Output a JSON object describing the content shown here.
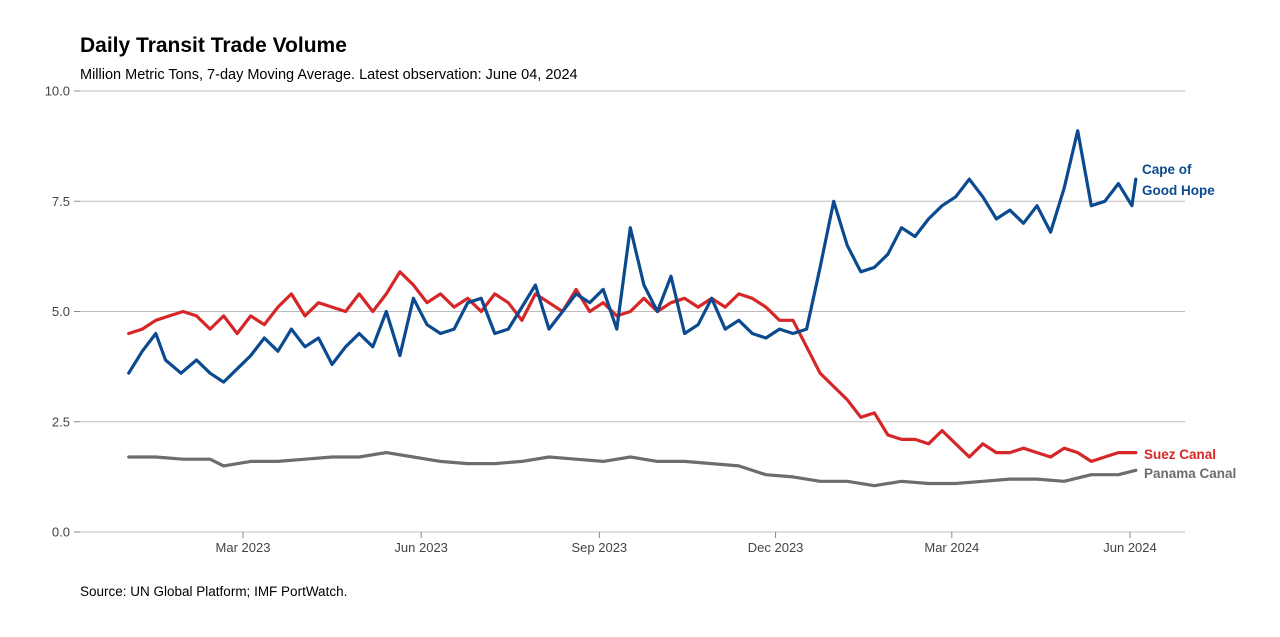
{
  "chart_data": {
    "type": "line",
    "title": "Daily Transit Trade Volume",
    "subtitle": "Million Metric Tons, 7-day Moving Average. Latest observation: June 04, 2024",
    "source": "Source: UN Global Platform; IMF PortWatch.",
    "ylim": [
      0,
      10
    ],
    "yticks": [
      "0.0",
      "2.5",
      "5.0",
      "7.5",
      "10.0"
    ],
    "xticks": [
      {
        "label": "Mar 2023",
        "date": "2023-03-01"
      },
      {
        "label": "Jun 2023",
        "date": "2023-06-01"
      },
      {
        "label": "Sep 2023",
        "date": "2023-09-01"
      },
      {
        "label": "Dec 2023",
        "date": "2023-12-01"
      },
      {
        "label": "Mar 2024",
        "date": "2024-03-01"
      },
      {
        "label": "Jun 2024",
        "date": "2024-06-01"
      }
    ],
    "xlim": [
      "2022-12-10",
      "2024-06-30"
    ],
    "grid": true,
    "legend": "direct-labels-right",
    "series": [
      {
        "name": "Cape of Good Hope",
        "label_lines": [
          "Cape of",
          "Good Hope"
        ],
        "color": "#0b4a8f",
        "points": [
          [
            "2023-01-01",
            3.6
          ],
          [
            "2023-01-08",
            4.1
          ],
          [
            "2023-01-15",
            4.5
          ],
          [
            "2023-01-20",
            3.9
          ],
          [
            "2023-01-28",
            3.6
          ],
          [
            "2023-02-05",
            3.9
          ],
          [
            "2023-02-12",
            3.6
          ],
          [
            "2023-02-19",
            3.4
          ],
          [
            "2023-02-26",
            3.7
          ],
          [
            "2023-03-05",
            4.0
          ],
          [
            "2023-03-12",
            4.4
          ],
          [
            "2023-03-19",
            4.1
          ],
          [
            "2023-03-26",
            4.6
          ],
          [
            "2023-04-02",
            4.2
          ],
          [
            "2023-04-09",
            4.4
          ],
          [
            "2023-04-16",
            3.8
          ],
          [
            "2023-04-23",
            4.2
          ],
          [
            "2023-04-30",
            4.5
          ],
          [
            "2023-05-07",
            4.2
          ],
          [
            "2023-05-14",
            5.0
          ],
          [
            "2023-05-21",
            4.0
          ],
          [
            "2023-05-28",
            5.3
          ],
          [
            "2023-06-04",
            4.7
          ],
          [
            "2023-06-11",
            4.5
          ],
          [
            "2023-06-18",
            4.6
          ],
          [
            "2023-06-25",
            5.2
          ],
          [
            "2023-07-02",
            5.3
          ],
          [
            "2023-07-09",
            4.5
          ],
          [
            "2023-07-16",
            4.6
          ],
          [
            "2023-07-23",
            5.1
          ],
          [
            "2023-07-30",
            5.6
          ],
          [
            "2023-08-06",
            4.6
          ],
          [
            "2023-08-13",
            5.0
          ],
          [
            "2023-08-20",
            5.4
          ],
          [
            "2023-08-27",
            5.2
          ],
          [
            "2023-09-03",
            5.5
          ],
          [
            "2023-09-10",
            4.6
          ],
          [
            "2023-09-17",
            6.9
          ],
          [
            "2023-09-24",
            5.6
          ],
          [
            "2023-10-01",
            5.0
          ],
          [
            "2023-10-08",
            5.8
          ],
          [
            "2023-10-15",
            4.5
          ],
          [
            "2023-10-22",
            4.7
          ],
          [
            "2023-10-29",
            5.3
          ],
          [
            "2023-11-05",
            4.6
          ],
          [
            "2023-11-12",
            4.8
          ],
          [
            "2023-11-19",
            4.5
          ],
          [
            "2023-11-26",
            4.4
          ],
          [
            "2023-12-03",
            4.6
          ],
          [
            "2023-12-10",
            4.5
          ],
          [
            "2023-12-17",
            4.6
          ],
          [
            "2023-12-24",
            6.0
          ],
          [
            "2023-12-31",
            7.5
          ],
          [
            "2024-01-07",
            6.5
          ],
          [
            "2024-01-14",
            5.9
          ],
          [
            "2024-01-21",
            6.0
          ],
          [
            "2024-01-28",
            6.3
          ],
          [
            "2024-02-04",
            6.9
          ],
          [
            "2024-02-11",
            6.7
          ],
          [
            "2024-02-18",
            7.1
          ],
          [
            "2024-02-25",
            7.4
          ],
          [
            "2024-03-03",
            7.6
          ],
          [
            "2024-03-10",
            8.0
          ],
          [
            "2024-03-17",
            7.6
          ],
          [
            "2024-03-24",
            7.1
          ],
          [
            "2024-03-31",
            7.3
          ],
          [
            "2024-04-07",
            7.0
          ],
          [
            "2024-04-14",
            7.4
          ],
          [
            "2024-04-21",
            6.8
          ],
          [
            "2024-04-28",
            7.8
          ],
          [
            "2024-05-05",
            9.1
          ],
          [
            "2024-05-12",
            7.4
          ],
          [
            "2024-05-19",
            7.5
          ],
          [
            "2024-05-26",
            7.9
          ],
          [
            "2024-06-02",
            7.4
          ],
          [
            "2024-06-04",
            8.0
          ]
        ]
      },
      {
        "name": "Suez Canal",
        "label_lines": [
          "Suez Canal"
        ],
        "color": "#d62728",
        "points": [
          [
            "2023-01-01",
            4.5
          ],
          [
            "2023-01-08",
            4.6
          ],
          [
            "2023-01-15",
            4.8
          ],
          [
            "2023-01-22",
            4.9
          ],
          [
            "2023-01-29",
            5.0
          ],
          [
            "2023-02-05",
            4.9
          ],
          [
            "2023-02-12",
            4.6
          ],
          [
            "2023-02-19",
            4.9
          ],
          [
            "2023-02-26",
            4.5
          ],
          [
            "2023-03-05",
            4.9
          ],
          [
            "2023-03-12",
            4.7
          ],
          [
            "2023-03-19",
            5.1
          ],
          [
            "2023-03-26",
            5.4
          ],
          [
            "2023-04-02",
            4.9
          ],
          [
            "2023-04-09",
            5.2
          ],
          [
            "2023-04-16",
            5.1
          ],
          [
            "2023-04-23",
            5.0
          ],
          [
            "2023-04-30",
            5.4
          ],
          [
            "2023-05-07",
            5.0
          ],
          [
            "2023-05-14",
            5.4
          ],
          [
            "2023-05-21",
            5.9
          ],
          [
            "2023-05-28",
            5.6
          ],
          [
            "2023-06-04",
            5.2
          ],
          [
            "2023-06-11",
            5.4
          ],
          [
            "2023-06-18",
            5.1
          ],
          [
            "2023-06-25",
            5.3
          ],
          [
            "2023-07-02",
            5.0
          ],
          [
            "2023-07-09",
            5.4
          ],
          [
            "2023-07-16",
            5.2
          ],
          [
            "2023-07-23",
            4.8
          ],
          [
            "2023-07-30",
            5.4
          ],
          [
            "2023-08-06",
            5.2
          ],
          [
            "2023-08-13",
            5.0
          ],
          [
            "2023-08-20",
            5.5
          ],
          [
            "2023-08-27",
            5.0
          ],
          [
            "2023-09-03",
            5.2
          ],
          [
            "2023-09-10",
            4.9
          ],
          [
            "2023-09-17",
            5.0
          ],
          [
            "2023-09-24",
            5.3
          ],
          [
            "2023-10-01",
            5.0
          ],
          [
            "2023-10-08",
            5.2
          ],
          [
            "2023-10-15",
            5.3
          ],
          [
            "2023-10-22",
            5.1
          ],
          [
            "2023-10-29",
            5.3
          ],
          [
            "2023-11-05",
            5.1
          ],
          [
            "2023-11-12",
            5.4
          ],
          [
            "2023-11-19",
            5.3
          ],
          [
            "2023-11-26",
            5.1
          ],
          [
            "2023-12-03",
            4.8
          ],
          [
            "2023-12-10",
            4.8
          ],
          [
            "2023-12-17",
            4.2
          ],
          [
            "2023-12-24",
            3.6
          ],
          [
            "2023-12-31",
            3.3
          ],
          [
            "2024-01-07",
            3.0
          ],
          [
            "2024-01-14",
            2.6
          ],
          [
            "2024-01-21",
            2.7
          ],
          [
            "2024-01-28",
            2.2
          ],
          [
            "2024-02-04",
            2.1
          ],
          [
            "2024-02-11",
            2.1
          ],
          [
            "2024-02-18",
            2.0
          ],
          [
            "2024-02-25",
            2.3
          ],
          [
            "2024-03-03",
            2.0
          ],
          [
            "2024-03-10",
            1.7
          ],
          [
            "2024-03-17",
            2.0
          ],
          [
            "2024-03-24",
            1.8
          ],
          [
            "2024-03-31",
            1.8
          ],
          [
            "2024-04-07",
            1.9
          ],
          [
            "2024-04-14",
            1.8
          ],
          [
            "2024-04-21",
            1.7
          ],
          [
            "2024-04-28",
            1.9
          ],
          [
            "2024-05-05",
            1.8
          ],
          [
            "2024-05-12",
            1.6
          ],
          [
            "2024-05-19",
            1.7
          ],
          [
            "2024-05-26",
            1.8
          ],
          [
            "2024-06-04",
            1.8
          ]
        ]
      },
      {
        "name": "Panama Canal",
        "label_lines": [
          "Panama Canal"
        ],
        "color": "#6d6d6d",
        "points": [
          [
            "2023-01-01",
            1.7
          ],
          [
            "2023-01-15",
            1.7
          ],
          [
            "2023-01-29",
            1.65
          ],
          [
            "2023-02-12",
            1.65
          ],
          [
            "2023-02-19",
            1.5
          ],
          [
            "2023-03-05",
            1.6
          ],
          [
            "2023-03-19",
            1.6
          ],
          [
            "2023-04-02",
            1.65
          ],
          [
            "2023-04-16",
            1.7
          ],
          [
            "2023-04-30",
            1.7
          ],
          [
            "2023-05-14",
            1.8
          ],
          [
            "2023-05-28",
            1.7
          ],
          [
            "2023-06-11",
            1.6
          ],
          [
            "2023-06-25",
            1.55
          ],
          [
            "2023-07-09",
            1.55
          ],
          [
            "2023-07-23",
            1.6
          ],
          [
            "2023-08-06",
            1.7
          ],
          [
            "2023-08-20",
            1.65
          ],
          [
            "2023-09-03",
            1.6
          ],
          [
            "2023-09-17",
            1.7
          ],
          [
            "2023-10-01",
            1.6
          ],
          [
            "2023-10-15",
            1.6
          ],
          [
            "2023-10-29",
            1.55
          ],
          [
            "2023-11-12",
            1.5
          ],
          [
            "2023-11-26",
            1.3
          ],
          [
            "2023-12-10",
            1.25
          ],
          [
            "2023-12-24",
            1.15
          ],
          [
            "2024-01-07",
            1.15
          ],
          [
            "2024-01-21",
            1.05
          ],
          [
            "2024-02-04",
            1.15
          ],
          [
            "2024-02-18",
            1.1
          ],
          [
            "2024-03-03",
            1.1
          ],
          [
            "2024-03-17",
            1.15
          ],
          [
            "2024-03-31",
            1.2
          ],
          [
            "2024-04-14",
            1.2
          ],
          [
            "2024-04-28",
            1.15
          ],
          [
            "2024-05-12",
            1.3
          ],
          [
            "2024-05-26",
            1.3
          ],
          [
            "2024-06-04",
            1.4
          ]
        ]
      }
    ]
  }
}
